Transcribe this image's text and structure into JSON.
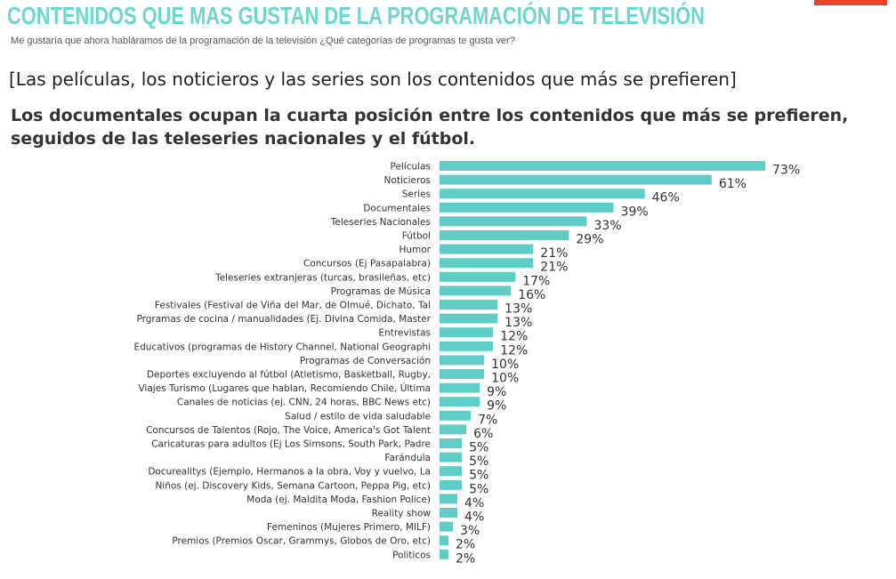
{
  "header": {
    "title": "CONTENIDOS QUE MAS GUSTAN DE LA PROGRAMACIÓN DE TELEVISIÓN",
    "subtitle": "Me gustaría que ahora habláramos de la programación de la televisión ¿Qué categorías de programas te gusta ver?",
    "headline": "[Las películas, los noticieros y las series son los contenidos que más se prefieren]",
    "summary": "Los documentales ocupan la cuarta posición entre los contenidos que más se prefieren, seguidos de las teleseries nacionales y el fútbol."
  },
  "colors": {
    "title": "#6fd6cf",
    "bar": "#5ecdc6",
    "accent": "#e8442a"
  },
  "chart_data": {
    "type": "bar",
    "orientation": "horizontal",
    "unit": "%",
    "categories": [
      "Películas",
      "Noticieros",
      "Series",
      "Documentales",
      "Teleseries Nacionales",
      "Fútbol",
      "Humor",
      "Concursos (Ej Pasapalabra)",
      "Teleseries extranjeras (turcas, brasileñas, etc)",
      "Programas de Música",
      "Festivales (Festival de Viña del Mar, de Olmué, Dichato, Tal",
      "Prgramas de cocina / manualidades (Ej. Divina Comida, Master",
      "Entrevistas",
      "Educativos (programas de History Channel, National Geographi",
      "Programas de Conversación",
      "Deportes excluyendo al fútbol (Atletismo, Basketball, Rugby,",
      "Viajes Turismo (Lugares que hablan, Recomiendo Chile, Última",
      "Canales de noticias (ej. CNN, 24 horas, BBC News etc)",
      "Salud / estilo de vida saludable",
      "Concursos de Talentos (Rojo, The Voice, America's Got Talent",
      "Caricaturas para adultos (Ej Los Simsons, South Park, Padre",
      "Farándula",
      "Docurealitys (Ejemplo, Hermanos a la obra, Voy y vuelvo, La",
      "Niños (ej. Discovery Kids, Semana Cartoon, Peppa Pig, etc)",
      "Moda (ej. Maldita Moda, Fashion Police)",
      "Reality show",
      "Femeninos (Mujeres Primero, MILF)",
      "Premios (Premios Oscar, Grammys, Globos de Oro, etc)",
      "Politicos"
    ],
    "values": [
      73,
      61,
      46,
      39,
      33,
      29,
      21,
      21,
      17,
      16,
      13,
      13,
      12,
      12,
      10,
      10,
      9,
      9,
      7,
      6,
      5,
      5,
      5,
      5,
      4,
      4,
      3,
      2,
      2
    ],
    "labels": [
      "73%",
      "61%",
      "46%",
      "39%",
      "33%",
      "29%",
      "21%",
      "21%",
      "17%",
      "16%",
      "13%",
      "13%",
      "12%",
      "12%",
      "10%",
      "10%",
      "9%",
      "9%",
      "7%",
      "6%",
      "5%",
      "5%",
      "5%",
      "5%",
      "4%",
      "4%",
      "3%",
      "2%",
      "2%"
    ],
    "xlim": [
      0,
      73
    ],
    "grid": false,
    "legend": "none"
  }
}
